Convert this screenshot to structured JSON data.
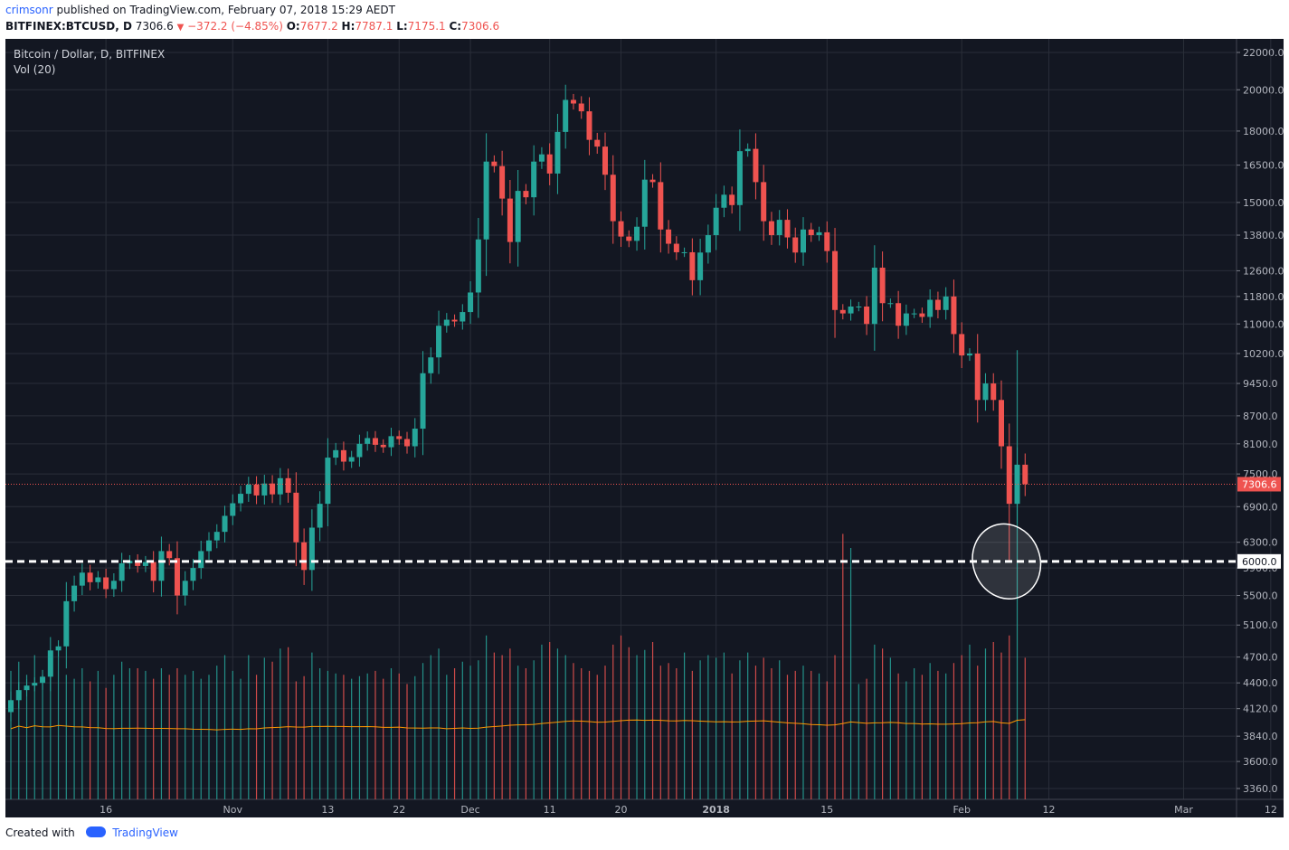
{
  "header": {
    "user": "crimsonr",
    "published_text": "published on TradingView.com, February 07, 2018 15:29 AEDT",
    "symbol": "BITFINEX:BTCUSD, D",
    "last": "7306.6",
    "change": "−372.2 (−4.85%)",
    "o_label": "O:",
    "o_value": "7677.2",
    "h_label": "H:",
    "h_value": "7787.1",
    "l_label": "L:",
    "l_value": "7175.1",
    "c_label": "C:",
    "c_value": "7306.6"
  },
  "legend": {
    "title": "Bitcoin / Dollar, D, BITFINEX",
    "volume": "Vol (20)"
  },
  "footer": {
    "created_with": "Created with",
    "brand": "TradingView"
  },
  "colors": {
    "background": "#131722",
    "up": "#26a69a",
    "down": "#ef5350",
    "grid": "#2a2e39",
    "ma": "#ff9800",
    "price_line": "#ef5350"
  },
  "chart_data": {
    "type": "candlestick",
    "title": "Bitcoin / Dollar, D, BITFINEX",
    "yaxis": {
      "scale": "log",
      "ticks": [
        3360,
        3600,
        3840,
        4120,
        4400,
        4700,
        5100,
        5500,
        5900,
        6300,
        6900,
        7500,
        8100,
        8700,
        9450,
        10200,
        11000,
        11800,
        12600,
        13800,
        15000,
        16500,
        18000,
        20000,
        22000
      ]
    },
    "xaxis": {
      "range_days": [
        "2017-10-04",
        "2018-03-14"
      ],
      "ticks": [
        {
          "date": "2017-10-16",
          "label": "16"
        },
        {
          "date": "2017-11-01",
          "label": "Nov"
        },
        {
          "date": "2017-11-13",
          "label": "13"
        },
        {
          "date": "2017-11-22",
          "label": "22"
        },
        {
          "date": "2017-12-01",
          "label": "Dec"
        },
        {
          "date": "2017-12-11",
          "label": "11"
        },
        {
          "date": "2017-12-20",
          "label": "20"
        },
        {
          "date": "2018-01-01",
          "label": "2018"
        },
        {
          "date": "2018-01-15",
          "label": "15"
        },
        {
          "date": "2018-02-01",
          "label": "Feb"
        },
        {
          "date": "2018-02-12",
          "label": "12"
        },
        {
          "date": "2018-03-01",
          "label": "Mar"
        },
        {
          "date": "2018-03-12",
          "label": "12"
        }
      ]
    },
    "start_date": "2017-10-04",
    "closes": [
      4210,
      4320,
      4370,
      4400,
      4470,
      4780,
      4830,
      5420,
      5640,
      5830,
      5690,
      5760,
      5590,
      5710,
      5970,
      6010,
      5930,
      5990,
      5710,
      6160,
      6050,
      5500,
      5710,
      5900,
      6160,
      6330,
      6470,
      6740,
      6960,
      7130,
      7300,
      7100,
      7320,
      7120,
      7420,
      7150,
      6300,
      5870,
      6540,
      6950,
      7820,
      7970,
      7740,
      7830,
      8100,
      8220,
      8080,
      8030,
      8260,
      8200,
      8050,
      8420,
      9700,
      10100,
      10950,
      11120,
      11070,
      11340,
      11920,
      13650,
      16650,
      16460,
      15150,
      13560,
      15450,
      15200,
      16650,
      16960,
      16150,
      17960,
      19490,
      19310,
      18930,
      17600,
      17300,
      16100,
      14300,
      13750,
      13600,
      14100,
      15900,
      15800,
      14000,
      13500,
      13210,
      13210,
      12300,
      13200,
      13800,
      14800,
      15300,
      14900,
      17100,
      17200,
      15800,
      14300,
      13800,
      14350,
      13720,
      13200,
      14000,
      13800,
      13900,
      13250,
      11400,
      11300,
      11500,
      11500,
      11000,
      12700,
      11600,
      11600,
      10950,
      11300,
      11300,
      11200,
      11700,
      11400,
      11800,
      10720,
      10150,
      10200,
      9060,
      9450,
      9060,
      8050,
      6950,
      7680,
      7306.6
    ],
    "volumes": [
      98,
      105,
      95,
      110,
      95,
      100,
      115,
      95,
      92,
      100,
      90,
      98,
      85,
      95,
      105,
      100,
      100,
      98,
      92,
      100,
      95,
      100,
      95,
      98,
      92,
      95,
      102,
      110,
      98,
      92,
      110,
      95,
      108,
      105,
      115,
      116,
      90,
      94,
      112,
      100,
      98,
      96,
      95,
      92,
      94,
      96,
      98,
      92,
      100,
      96,
      88,
      94,
      104,
      110,
      115,
      95,
      100,
      105,
      102,
      106,
      125,
      112,
      110,
      115,
      102,
      100,
      106,
      118,
      120,
      115,
      110,
      104,
      100,
      98,
      95,
      102,
      118,
      125,
      116,
      110,
      114,
      120,
      102,
      104,
      100,
      112,
      98,
      106,
      110,
      108,
      112,
      96,
      106,
      112,
      102,
      108,
      100,
      106,
      95,
      98,
      102,
      98,
      96,
      90,
      110,
      150,
      142,
      88,
      92,
      118,
      115,
      108,
      96,
      90,
      100,
      95,
      104,
      98,
      96,
      104,
      110,
      118,
      102,
      115,
      120,
      112,
      125,
      175,
      108
    ],
    "volume_scale_labels": [
      "3360.0",
      "3600.0",
      "3840.0",
      "4120.0",
      "4400.0",
      "4700.0",
      "5100.0",
      "5500.0",
      "5900.0",
      "6300.0",
      "6900.0",
      "7500.0",
      "8100.0",
      "8700.0",
      "9450.0",
      "10200.0",
      "11000.0",
      "11800.0",
      "12600.0",
      "13800.0",
      "15000.0",
      "16500.0",
      "18000.0",
      "20000.0",
      "22000.0"
    ],
    "price_labels": {
      "last": "7306.6",
      "level": "6000.0"
    },
    "annotations": [
      "horizontal dashed support line at 6000.0",
      "white ellipse around Feb 6 low wick"
    ]
  }
}
